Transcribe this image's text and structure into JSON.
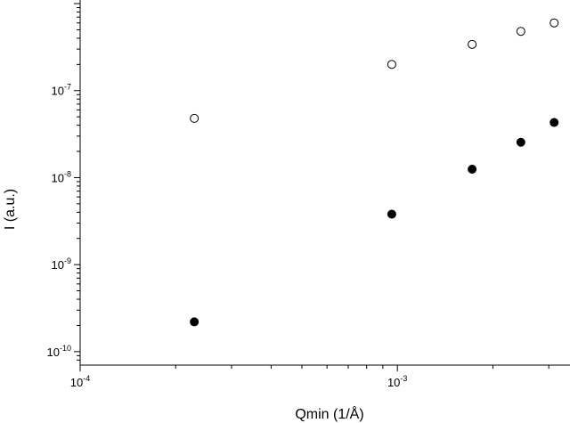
{
  "chart_data": {
    "type": "scatter",
    "title": "",
    "xlabel": "Qmin (1/Å)",
    "ylabel": "I (a.u.)",
    "x_scale": "log",
    "y_scale": "log",
    "xlim": [
      0.0001,
      0.0035
    ],
    "ylim": [
      7e-11,
      1.1e-06
    ],
    "grid": false,
    "x_ticks": [
      {
        "base": "10",
        "exp": "-4",
        "value": 0.0001
      },
      {
        "base": "10",
        "exp": "-3",
        "value": 0.001
      }
    ],
    "y_ticks": [
      {
        "base": "10",
        "exp": "-10",
        "value": 1e-10
      },
      {
        "base": "10",
        "exp": "-9",
        "value": 1e-09
      },
      {
        "base": "10",
        "exp": "-8",
        "value": 1e-08
      },
      {
        "base": "10",
        "exp": "-7",
        "value": 1e-07
      }
    ],
    "series": [
      {
        "marker": "open-circle",
        "x": [
          0.000229,
          0.00096,
          0.00172,
          0.00245,
          0.00312
        ],
        "y": [
          4.8e-08,
          2e-07,
          3.4e-07,
          4.8e-07,
          6e-07
        ]
      },
      {
        "marker": "filled-circle",
        "x": [
          0.000229,
          0.00096,
          0.00172,
          0.00245,
          0.00312
        ],
        "y": [
          2.2e-10,
          3.8e-09,
          1.25e-08,
          2.55e-08,
          4.3e-08
        ]
      }
    ]
  }
}
